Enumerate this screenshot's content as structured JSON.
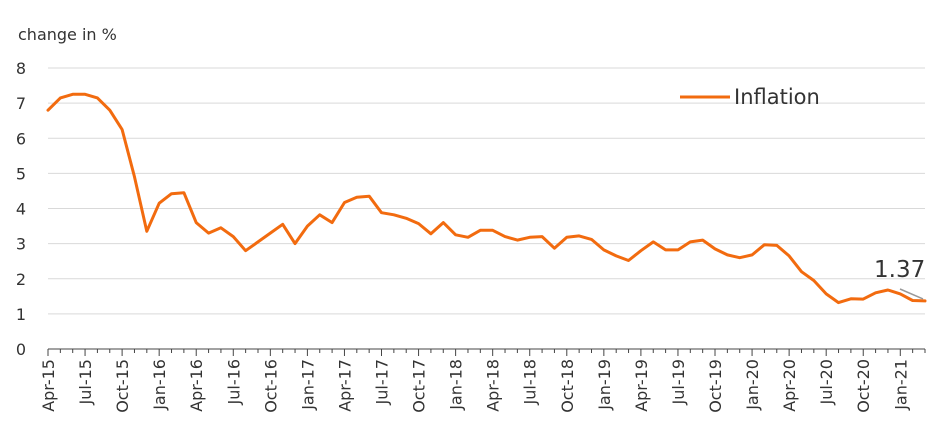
{
  "chart_data": {
    "type": "line",
    "ylabel": "change in %",
    "ylim": [
      0,
      8
    ],
    "yticks": [
      "0",
      "1",
      "2",
      "3",
      "4",
      "5",
      "6",
      "7",
      "8"
    ],
    "grid": true,
    "legend_position": "top-right",
    "x_tick_labels": [
      "Apr-15",
      "Jul-15",
      "Oct-15",
      "Jan-16",
      "Apr-16",
      "Jul-16",
      "Oct-16",
      "Jan-17",
      "Apr-17",
      "Jul-17",
      "Oct-17",
      "Jan-18",
      "Apr-18",
      "Jul-18",
      "Oct-18",
      "Jan-19",
      "Apr-19",
      "Jul-19",
      "Oct-19",
      "Jan-20",
      "Apr-20",
      "Jul-20",
      "Oct-20",
      "Jan-21"
    ],
    "x": [
      "Apr-15",
      "May-15",
      "Jun-15",
      "Jul-15",
      "Aug-15",
      "Sep-15",
      "Oct-15",
      "Nov-15",
      "Dec-15",
      "Jan-16",
      "Feb-16",
      "Mar-16",
      "Apr-16",
      "May-16",
      "Jun-16",
      "Jul-16",
      "Aug-16",
      "Sep-16",
      "Oct-16",
      "Nov-16",
      "Dec-16",
      "Jan-17",
      "Feb-17",
      "Mar-17",
      "Apr-17",
      "May-17",
      "Jun-17",
      "Jul-17",
      "Aug-17",
      "Sep-17",
      "Oct-17",
      "Nov-17",
      "Dec-17",
      "Jan-18",
      "Feb-18",
      "Mar-18",
      "Apr-18",
      "May-18",
      "Jun-18",
      "Jul-18",
      "Aug-18",
      "Sep-18",
      "Oct-18",
      "Nov-18",
      "Dec-18",
      "Jan-19",
      "Feb-19",
      "Mar-19",
      "Apr-19",
      "May-19",
      "Jun-19",
      "Jul-19",
      "Aug-19",
      "Sep-19",
      "Oct-19",
      "Nov-19",
      "Dec-19",
      "Jan-20",
      "Feb-20",
      "Mar-20",
      "Apr-20",
      "May-20",
      "Jun-20",
      "Jul-20",
      "Aug-20",
      "Sep-20",
      "Oct-20",
      "Nov-20",
      "Dec-20",
      "Jan-21",
      "Feb-21",
      "Mar-21"
    ],
    "series": [
      {
        "name": "Inflation",
        "color": "#f26b0f",
        "values": [
          6.8,
          7.15,
          7.25,
          7.25,
          7.15,
          6.8,
          6.25,
          4.9,
          3.35,
          4.15,
          4.42,
          4.45,
          3.6,
          3.3,
          3.45,
          3.2,
          2.8,
          3.05,
          3.3,
          3.55,
          3.0,
          3.5,
          3.82,
          3.6,
          4.17,
          4.32,
          4.35,
          3.88,
          3.82,
          3.72,
          3.57,
          3.28,
          3.6,
          3.25,
          3.18,
          3.38,
          3.38,
          3.2,
          3.1,
          3.18,
          3.2,
          2.87,
          3.18,
          3.22,
          3.12,
          2.82,
          2.65,
          2.52,
          2.8,
          3.05,
          2.82,
          2.82,
          3.05,
          3.1,
          2.85,
          2.68,
          2.6,
          2.68,
          2.97,
          2.95,
          2.65,
          2.2,
          1.95,
          1.57,
          1.32,
          1.43,
          1.42,
          1.6,
          1.68,
          1.57,
          1.38,
          1.37
        ]
      }
    ],
    "annotation": {
      "text": "1.37",
      "x": "Mar-21",
      "y": 1.37
    }
  }
}
